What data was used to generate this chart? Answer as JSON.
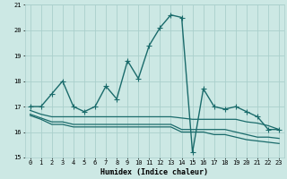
{
  "xlabel": "Humidex (Indice chaleur)",
  "xlim": [
    -0.5,
    23.5
  ],
  "ylim": [
    15,
    21
  ],
  "yticks": [
    15,
    16,
    17,
    18,
    19,
    20,
    21
  ],
  "xticks": [
    0,
    1,
    2,
    3,
    4,
    5,
    6,
    7,
    8,
    9,
    10,
    11,
    12,
    13,
    14,
    15,
    16,
    17,
    18,
    19,
    20,
    21,
    22,
    23
  ],
  "bg_color": "#cce8e4",
  "grid_color": "#aacfcc",
  "line_color": "#1a6b6b",
  "series": [
    {
      "x": [
        0,
        1,
        2,
        3,
        4,
        5,
        6,
        7,
        8,
        9,
        10,
        11,
        12,
        13,
        14,
        15,
        16,
        17,
        18,
        19,
        20,
        21,
        22,
        23
      ],
      "y": [
        17.0,
        17.0,
        17.5,
        18.0,
        17.0,
        16.8,
        17.0,
        17.8,
        17.3,
        18.8,
        18.1,
        19.4,
        20.1,
        20.6,
        20.5,
        15.2,
        17.7,
        17.0,
        16.9,
        17.0,
        16.8,
        16.6,
        16.1,
        16.1
      ],
      "marker": "+",
      "markersize": 4,
      "linewidth": 1.0
    },
    {
      "x": [
        0,
        1,
        2,
        3,
        4,
        5,
        6,
        7,
        8,
        9,
        10,
        11,
        12,
        13,
        14,
        15,
        16,
        17,
        18,
        19,
        20,
        21,
        22,
        23
      ],
      "y": [
        16.85,
        16.7,
        16.6,
        16.6,
        16.6,
        16.6,
        16.6,
        16.6,
        16.6,
        16.6,
        16.6,
        16.6,
        16.6,
        16.6,
        16.55,
        16.5,
        16.5,
        16.5,
        16.5,
        16.5,
        16.4,
        16.35,
        16.25,
        16.1
      ],
      "marker": null,
      "linewidth": 0.9
    },
    {
      "x": [
        0,
        1,
        2,
        3,
        4,
        5,
        6,
        7,
        8,
        9,
        10,
        11,
        12,
        13,
        14,
        15,
        16,
        17,
        18,
        19,
        20,
        21,
        22,
        23
      ],
      "y": [
        16.7,
        16.55,
        16.4,
        16.4,
        16.3,
        16.3,
        16.3,
        16.3,
        16.3,
        16.3,
        16.3,
        16.3,
        16.3,
        16.3,
        16.1,
        16.1,
        16.1,
        16.1,
        16.1,
        16.0,
        15.9,
        15.8,
        15.8,
        15.75
      ],
      "marker": null,
      "linewidth": 0.9
    },
    {
      "x": [
        0,
        1,
        2,
        3,
        4,
        5,
        6,
        7,
        8,
        9,
        10,
        11,
        12,
        13,
        14,
        15,
        16,
        17,
        18,
        19,
        20,
        21,
        22,
        23
      ],
      "y": [
        16.65,
        16.5,
        16.3,
        16.3,
        16.2,
        16.2,
        16.2,
        16.2,
        16.2,
        16.2,
        16.2,
        16.2,
        16.2,
        16.2,
        16.0,
        16.0,
        16.0,
        15.9,
        15.9,
        15.8,
        15.7,
        15.65,
        15.6,
        15.55
      ],
      "marker": null,
      "linewidth": 0.9
    }
  ]
}
